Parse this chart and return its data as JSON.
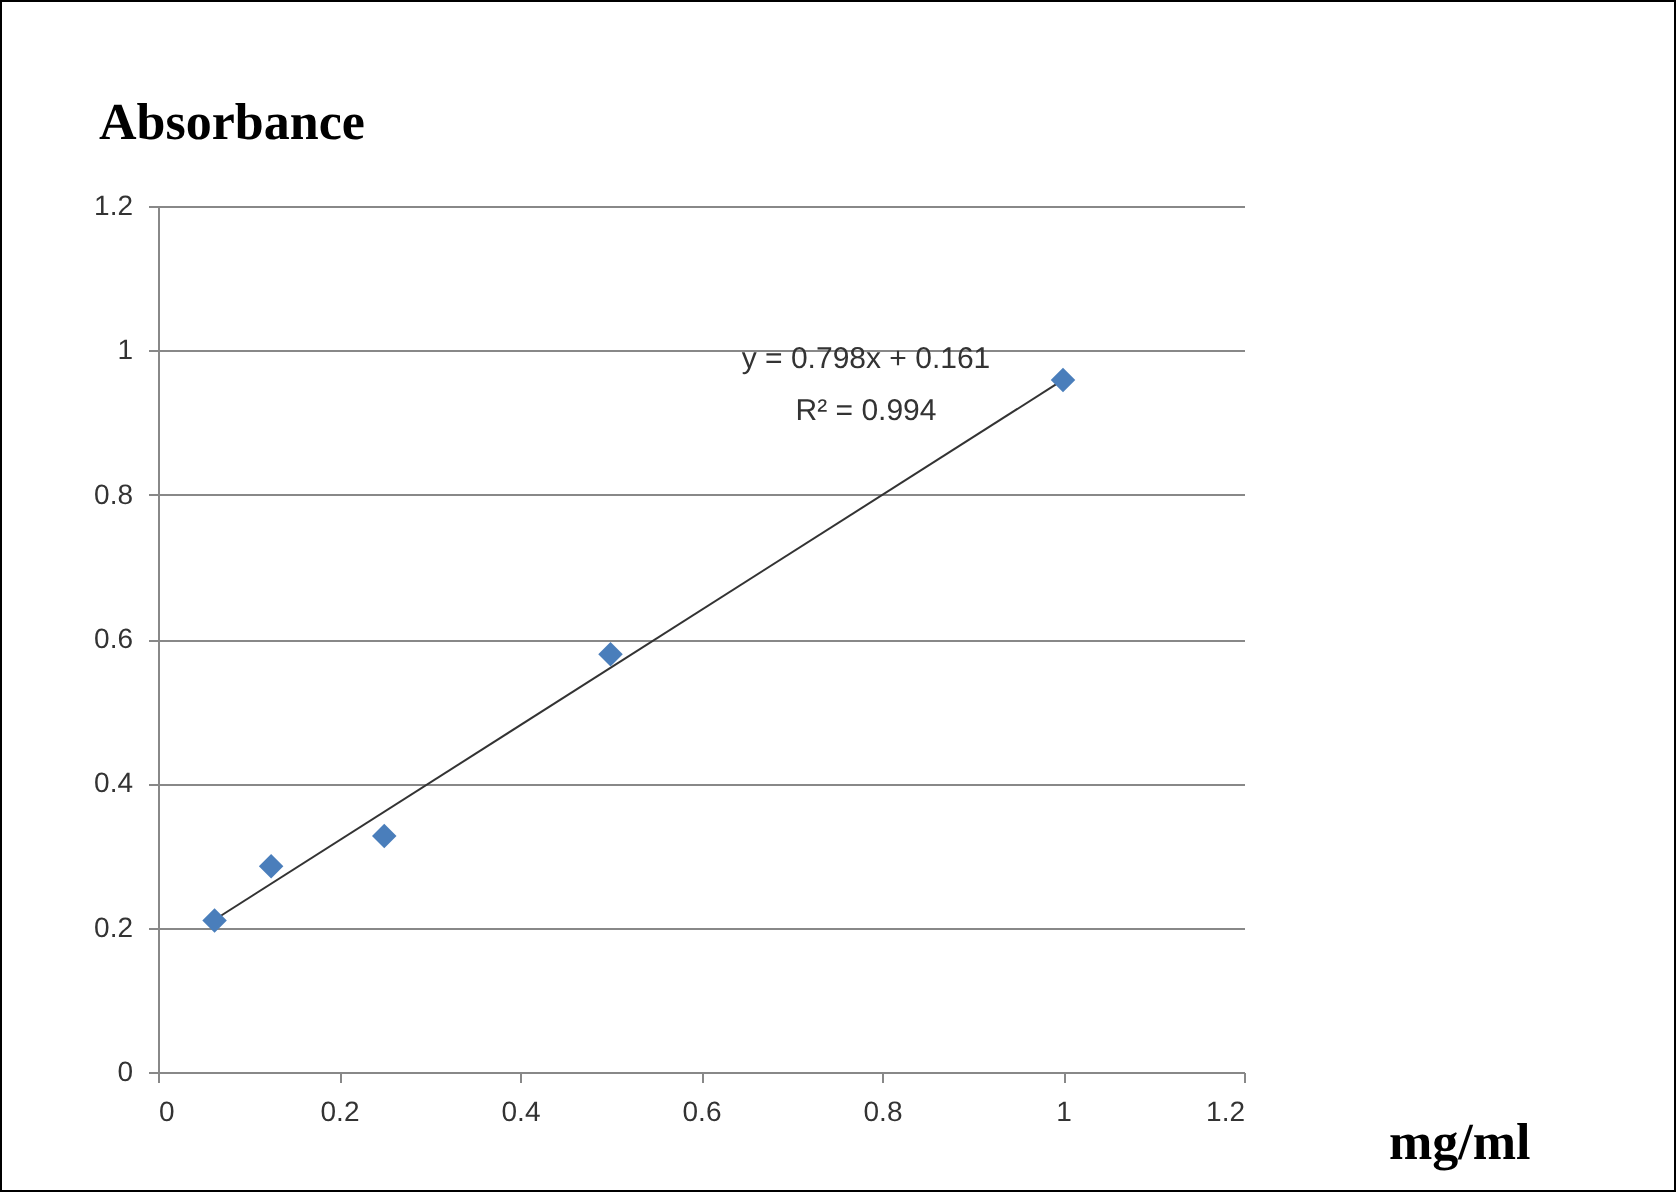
{
  "chart_data": {
    "type": "scatter",
    "ylabel": "Absorbance",
    "xlabel": "mg/ml",
    "series": [
      {
        "color": "#4a7ebb",
        "marker": "diamond",
        "x": [
          0.0625,
          0.125,
          0.25,
          0.5,
          1
        ],
        "values": [
          0.21,
          0.285,
          0.327,
          0.579,
          0.959
        ]
      },
      {
        "type": "line",
        "color": "#333333",
        "x": [
          0.0625,
          1
        ],
        "values": [
          0.211,
          0.959
        ]
      }
    ],
    "grid": "y",
    "xlim": [
      0,
      1.2
    ],
    "xticks": [
      0,
      0.2,
      0.4,
      0.6,
      0.8,
      1,
      1.2
    ],
    "ylim": [
      0,
      1.2
    ],
    "yticks": [
      0,
      0.2,
      0.4,
      0.6,
      0.8,
      1,
      1.2
    ],
    "annotations": [
      "y = 0.798x + 0.161",
      "R² = 0.994"
    ]
  }
}
